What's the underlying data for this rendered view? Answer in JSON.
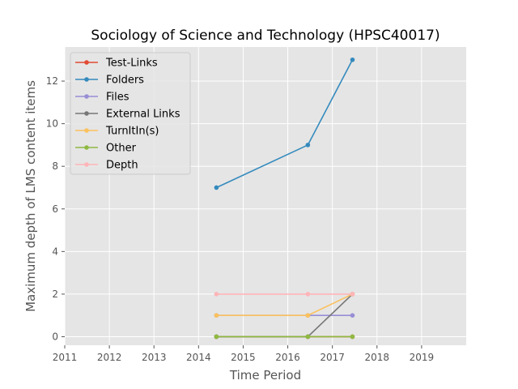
{
  "chart_data": {
    "type": "line",
    "title": "Sociology of Science and Technology (HPSC40017)",
    "xlabel": "Time Period",
    "ylabel": "Maximum depth of LMS content items",
    "xlim": [
      2011,
      2020
    ],
    "ylim": [
      -0.4,
      13.6
    ],
    "x_ticks": [
      2011,
      2012,
      2013,
      2014,
      2015,
      2016,
      2017,
      2018,
      2019
    ],
    "y_ticks": [
      0,
      2,
      4,
      6,
      8,
      10,
      12
    ],
    "grid": true,
    "legend_position": "upper-left",
    "x": [
      2014.4,
      2016.45,
      2017.45
    ],
    "series": [
      {
        "name": "Test-Links",
        "color": "#e24a33",
        "values": [
          0,
          0,
          0
        ]
      },
      {
        "name": "Folders",
        "color": "#348abd",
        "values": [
          7,
          9,
          13
        ]
      },
      {
        "name": "Files",
        "color": "#988ed5",
        "values": [
          1,
          1,
          1
        ]
      },
      {
        "name": "External Links",
        "color": "#777777",
        "values": [
          0,
          0,
          2
        ]
      },
      {
        "name": "TurnItIn(s)",
        "color": "#fbc15e",
        "values": [
          1,
          1,
          2
        ]
      },
      {
        "name": "Other",
        "color": "#8eba42",
        "values": [
          0,
          0,
          0
        ]
      },
      {
        "name": "Depth",
        "color": "#ffb5b8",
        "values": [
          2,
          2,
          2
        ]
      }
    ]
  }
}
